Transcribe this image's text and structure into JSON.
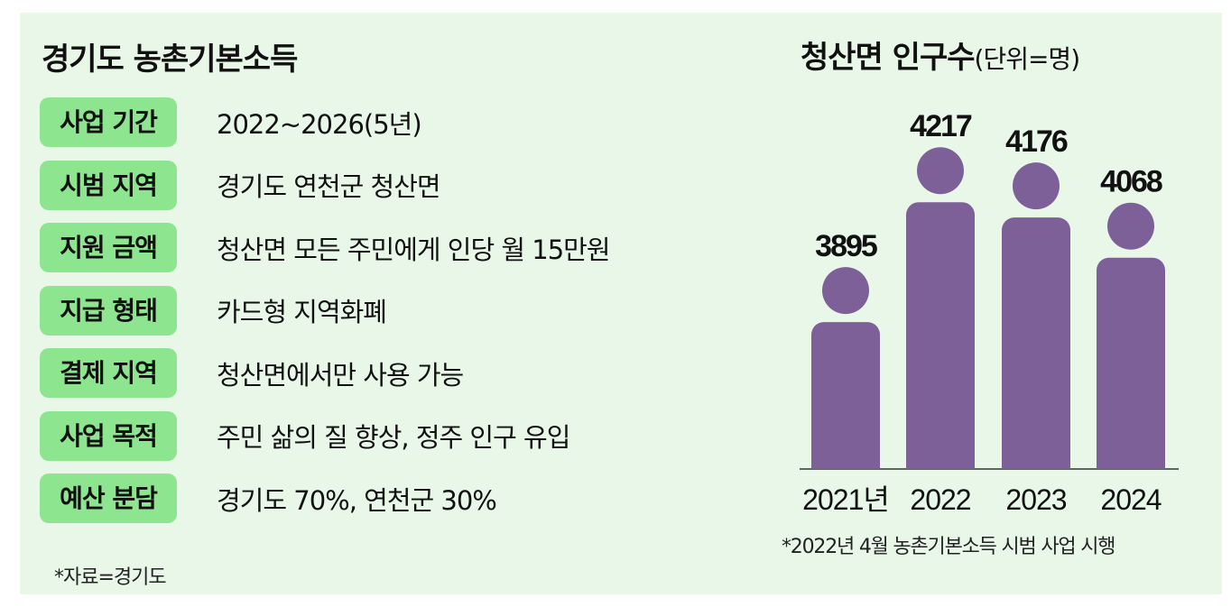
{
  "info": {
    "title": "경기도 농촌기본소득",
    "rows": [
      {
        "label": "사업 기간",
        "value": "2022~2026(5년)"
      },
      {
        "label": "시범 지역",
        "value": "경기도 연천군 청산면"
      },
      {
        "label": "지원 금액",
        "value": "청산면 모든 주민에게 인당 월 15만원"
      },
      {
        "label": "지급 형태",
        "value": "카드형 지역화폐"
      },
      {
        "label": "결제 지역",
        "value": "청산면에서만 사용 가능"
      },
      {
        "label": "사업 목적",
        "value": "주민 삶의 질 향상, 정주 인구 유입"
      },
      {
        "label": "예산 분담",
        "value": "경기도 70%, 연천군 30%"
      }
    ],
    "source": "*자료=경기도"
  },
  "chart_data": {
    "type": "bar",
    "title": "청산면 인구수",
    "unit_label": "(단위=명)",
    "categories": [
      "2021년",
      "2022",
      "2023",
      "2024"
    ],
    "values": [
      3895,
      4217,
      4176,
      4068
    ],
    "ylim": [
      3500,
      4300
    ],
    "grid": false,
    "legend": "none",
    "bar_color": "#7e6099",
    "note": "*2022년 4월 농촌기본소득 시범 사업 시행"
  },
  "colors": {
    "panel_bg": "#e9f7e8",
    "tag_bg": "#8ee58f",
    "bar": "#7e6099"
  }
}
